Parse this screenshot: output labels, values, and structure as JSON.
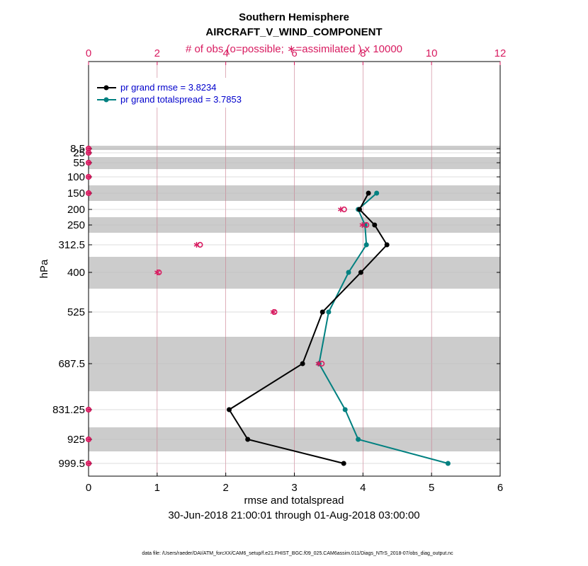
{
  "title": "Southern Hemisphere",
  "subtitle": "AIRCRAFT_V_WIND_COMPONENT",
  "top_axis_label": "# of obs (o=possible; ∗=assimilated ) x 10000",
  "x_axis_label": "rmse and totalspread",
  "y_axis_label": "hPa",
  "date_range": "30-Jun-2018 21:00:01 through 01-Aug-2018 03:00:00",
  "footer": "data file: /Users/raeder/DAI/ATM_forcXX/CAM6_setup/f.e21.FHIST_BGC.f09_025.CAM6assim.011/Diags_NTrS_2018-07/obs_diag_output.nc",
  "colors": {
    "rmse": "#000000",
    "spread": "#008080",
    "obs": "#d81b60",
    "legend_text": "#0000cc",
    "band": "#cccccc"
  },
  "chart_data": {
    "type": "line",
    "levels": [
      8.5,
      25,
      55,
      100,
      150,
      200,
      250,
      312.5,
      400,
      525,
      687.5,
      831.25,
      925,
      999.5
    ],
    "level_labels": [
      "8.5",
      "25",
      "55",
      "100",
      "150",
      "200",
      "250",
      "312.5",
      "400",
      "525",
      "687.5",
      "831.25",
      "925",
      "999.5"
    ],
    "bottom_axis": {
      "range": [
        0,
        6
      ],
      "ticks": [
        "0",
        "1",
        "2",
        "3",
        "4",
        "5",
        "6"
      ]
    },
    "top_axis": {
      "range": [
        0,
        12
      ],
      "ticks": [
        "0",
        "2",
        "4",
        "6",
        "8",
        "10",
        "12"
      ]
    },
    "series": [
      {
        "name": "rmse",
        "legend": "pr grand rmse = 3.8234",
        "levels": [
          150,
          200,
          250,
          312.5,
          400,
          525,
          687.5,
          831.25,
          925,
          999.5
        ],
        "values": [
          4.08,
          3.95,
          4.17,
          4.35,
          3.97,
          3.41,
          3.12,
          2.05,
          2.32,
          3.72
        ]
      },
      {
        "name": "totalspread",
        "legend": "pr grand totalspread = 3.7853",
        "levels": [
          150,
          200,
          250,
          312.5,
          400,
          525,
          687.5,
          831.25,
          925,
          999.5
        ],
        "values": [
          4.2,
          3.93,
          4.03,
          4.05,
          3.79,
          3.5,
          3.36,
          3.74,
          3.93,
          5.24
        ]
      }
    ],
    "obs_possible": {
      "levels": [
        8.5,
        25,
        55,
        100,
        150,
        200,
        250,
        312.5,
        400,
        525,
        687.5,
        831.25,
        925,
        999.5
      ],
      "values": [
        0,
        0,
        0,
        0,
        0,
        7.45,
        8.1,
        3.25,
        2.05,
        5.42,
        6.8,
        0,
        0,
        0
      ]
    },
    "obs_assimilated": {
      "levels": [
        8.5,
        25,
        55,
        100,
        150,
        200,
        250,
        312.5,
        400,
        525,
        687.5,
        831.25,
        925,
        999.5
      ],
      "values": [
        0,
        0,
        0,
        0,
        0,
        7.35,
        7.98,
        3.15,
        2.0,
        5.38,
        6.7,
        0,
        0,
        0
      ]
    }
  }
}
